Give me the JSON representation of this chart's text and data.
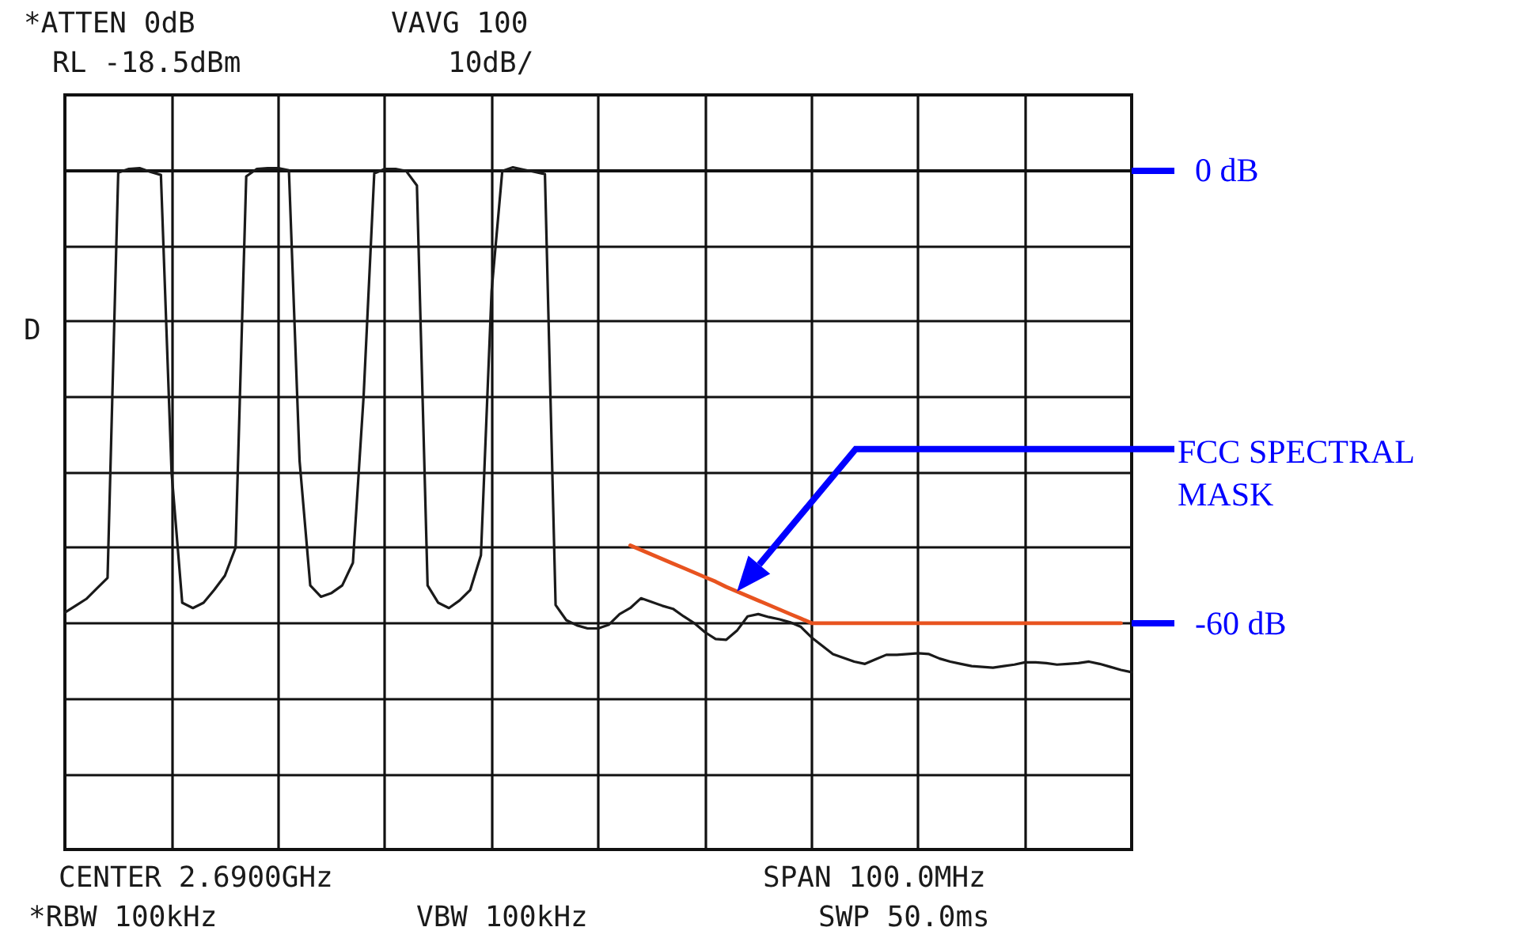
{
  "chart_data": {
    "type": "line",
    "annotations": [
      "*ATTEN 0dB",
      "VAVG 100",
      "RL -18.5dBm",
      "10dB/",
      "D",
      "FCC SPECTRAL MASK",
      "CENTER 2.6900GHz",
      "SPAN 100.0MHz",
      "*RBW 100kHz",
      "VBW 100kHz",
      "SWP 50.0ms"
    ],
    "categories": [
      null,
      null,
      null,
      null,
      null,
      null,
      null,
      null,
      null,
      null,
      null,
      null,
      null,
      null,
      null,
      null,
      null,
      null,
      null,
      null,
      null,
      null,
      null,
      null,
      null,
      null,
      null,
      null,
      null,
      null,
      null,
      null,
      null,
      null,
      null,
      null,
      null,
      null,
      null,
      null,
      null,
      null,
      null,
      null,
      null,
      null,
      null,
      null,
      null,
      null,
      null,
      null,
      null,
      null,
      null,
      null,
      null,
      null,
      null,
      null,
      null,
      null,
      null,
      null,
      null,
      null,
      null,
      null,
      null,
      null,
      null,
      null,
      null,
      null,
      null,
      null,
      null,
      null,
      null,
      null,
      null,
      null,
      null,
      null,
      null,
      null,
      null,
      null,
      null,
      null,
      null,
      null,
      null,
      null,
      null,
      null,
      null,
      null,
      null,
      null,
      null
    ],
    "series": [
      {
        "color": "#1a1a1a",
        "values": [
          -58.6,
          -57.7,
          -56.8,
          -55.4,
          -54,
          -0.3,
          0.2,
          0.3,
          -0.2,
          -0.6,
          -40,
          -57.3,
          -58,
          -57.3,
          -55.6,
          -53.7,
          -50,
          -0.8,
          0.2,
          0.3,
          0.3,
          0,
          -38.5,
          -55,
          -56.5,
          -56,
          -55,
          -52,
          -30,
          -0.4,
          0.2,
          0.2,
          -0.1,
          -2,
          -55,
          -57.3,
          -58,
          -57,
          -55.6,
          -51,
          -16,
          -0.1,
          0.4,
          0.1,
          -0.2,
          -0.5,
          -57.6,
          -59.6,
          -60.3,
          -60.7,
          -60.7,
          -60.2,
          -58.8,
          -58,
          -56.7,
          -57.2,
          -57.7,
          -58.1,
          -59.1,
          -60,
          -61.2,
          -62.1,
          -62.2,
          -61,
          -59.1,
          -58.8,
          -59.2,
          -59.5,
          -59.9,
          -60.5,
          -61.9,
          -63,
          -64.1,
          -64.6,
          -65.1,
          -65.4,
          -64.8,
          -64.2,
          -64.2,
          -64.1,
          -64,
          -64.1,
          -64.7,
          -65.1,
          -65.4,
          -65.7,
          -65.8,
          -65.9,
          -65.7,
          -65.5,
          -65.2,
          -65.2,
          -65.3,
          -65.5,
          -65.4,
          -65.3,
          -65.1,
          -65.4,
          -65.8,
          -66.2,
          -66.5
        ]
      },
      {
        "color": "#e8531f",
        "values": [
          null,
          null,
          null,
          null,
          null,
          null,
          null,
          null,
          null,
          null,
          null,
          null,
          null,
          null,
          null,
          null,
          null,
          null,
          null,
          null,
          null,
          null,
          null,
          null,
          null,
          null,
          null,
          null,
          null,
          null,
          null,
          null,
          null,
          null,
          null,
          null,
          null,
          null,
          null,
          null,
          null,
          null,
          null,
          null,
          null,
          null,
          null,
          null,
          null,
          null,
          null,
          null,
          null,
          -49.7,
          -50.3,
          -50.9,
          -51.5,
          -52.1,
          -52.7,
          -53.3,
          -53.9,
          -54.5,
          -55.2,
          -55.8,
          -56.4,
          -57,
          -57.6,
          -58.2,
          -58.8,
          -59.4,
          -60,
          -60,
          -60,
          -60,
          -60,
          -60,
          -60,
          -60,
          -60,
          -60,
          -60,
          -60,
          -60,
          -60,
          -60,
          -60,
          -60,
          -60,
          -60,
          -60,
          -60,
          -60,
          -60,
          -60,
          -60,
          -60,
          -60,
          -60,
          -60,
          -60,
          null
        ]
      }
    ],
    "ylim": [
      -90,
      10
    ],
    "yticks": [
      {
        "value": -90,
        "label": null
      },
      {
        "value": -80,
        "label": null
      },
      {
        "value": -70,
        "label": null
      },
      {
        "value": -60,
        "label": "-60 dB"
      },
      {
        "value": -50,
        "label": null
      },
      {
        "value": -40,
        "label": null
      },
      {
        "value": -30,
        "label": null
      },
      {
        "value": -20,
        "label": null
      },
      {
        "value": -10,
        "label": null
      },
      {
        "value": 0,
        "label": "0 dB"
      },
      {
        "value": 10,
        "label": null
      }
    ],
    "grid": true,
    "tick_labels": "y",
    "line_style": "solid"
  }
}
